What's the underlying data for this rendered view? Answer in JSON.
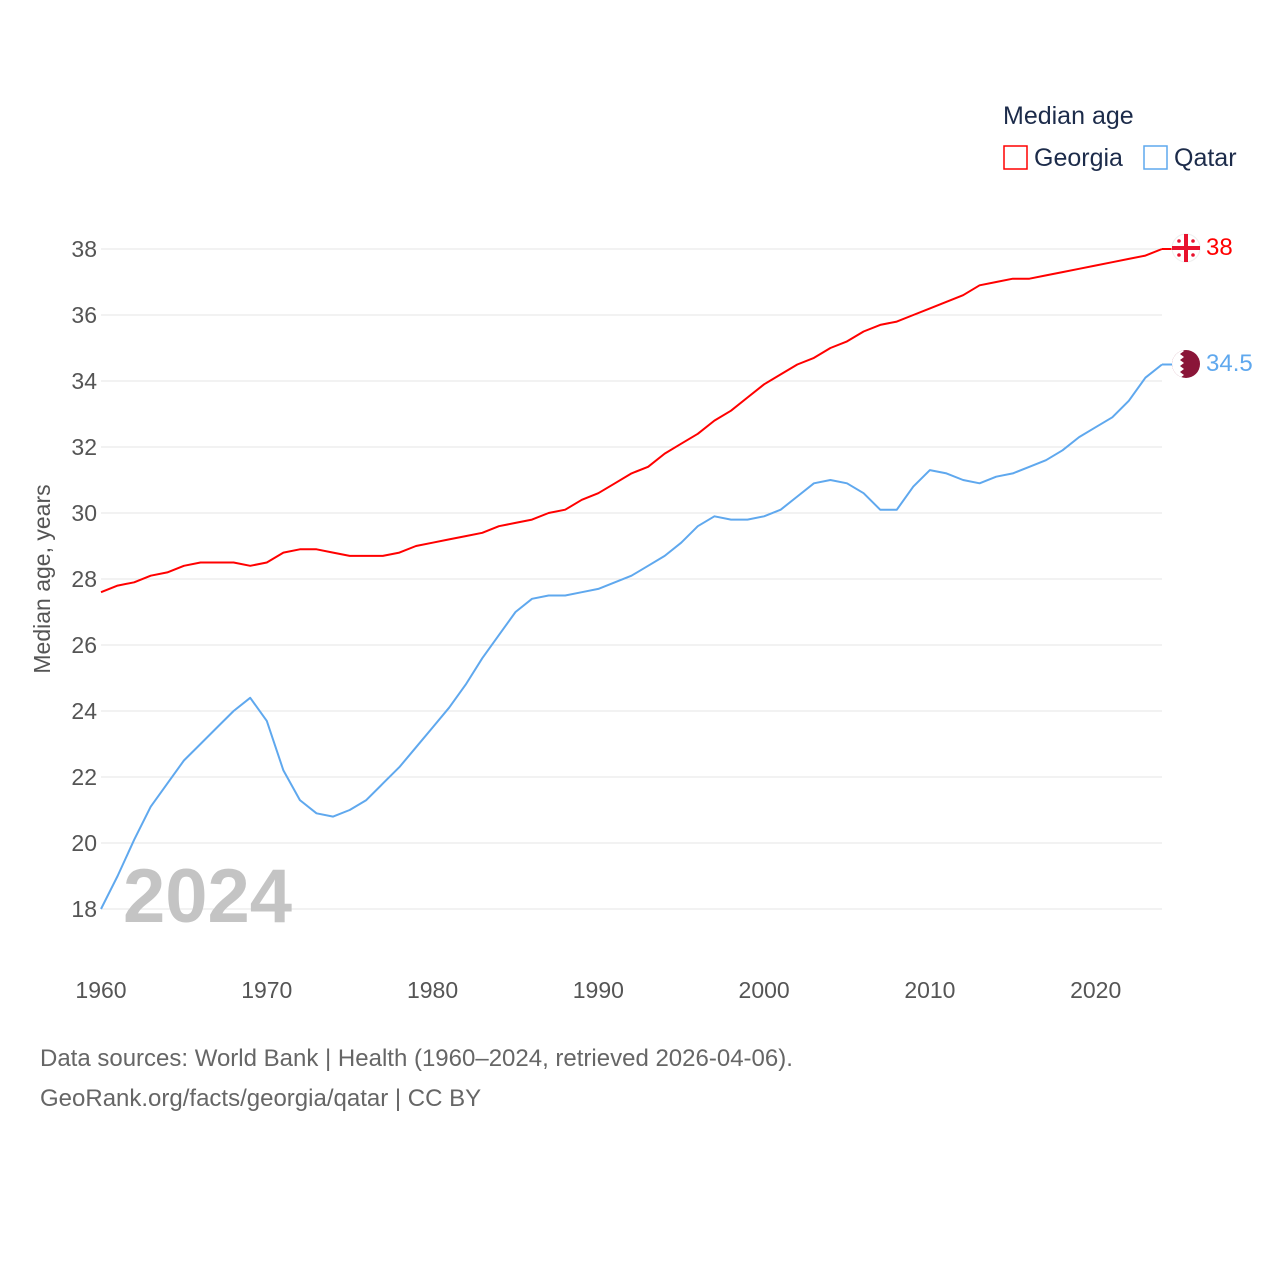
{
  "chart_data": {
    "type": "line",
    "title": "",
    "legend_title": "Median age",
    "legend_position": "top-right",
    "xlabel": "",
    "ylabel": "Median age, years",
    "xlim": [
      1960,
      2024
    ],
    "ylim": [
      18,
      38
    ],
    "y_ticks": [
      18,
      20,
      22,
      24,
      26,
      28,
      30,
      32,
      34,
      36,
      38
    ],
    "x_ticks": [
      1960,
      1970,
      1980,
      1990,
      2000,
      2010,
      2020
    ],
    "grid": true,
    "year_watermark": "2024",
    "x": [
      1960,
      1961,
      1962,
      1963,
      1964,
      1965,
      1966,
      1967,
      1968,
      1969,
      1970,
      1971,
      1972,
      1973,
      1974,
      1975,
      1976,
      1977,
      1978,
      1979,
      1980,
      1981,
      1982,
      1983,
      1984,
      1985,
      1986,
      1987,
      1988,
      1989,
      1990,
      1991,
      1992,
      1993,
      1994,
      1995,
      1996,
      1997,
      1998,
      1999,
      2000,
      2001,
      2002,
      2003,
      2004,
      2005,
      2006,
      2007,
      2008,
      2009,
      2010,
      2011,
      2012,
      2013,
      2014,
      2015,
      2016,
      2017,
      2018,
      2019,
      2020,
      2021,
      2022,
      2023,
      2024
    ],
    "series": [
      {
        "name": "Georgia",
        "color": "#ff0000",
        "end_label": "38",
        "values": [
          27.6,
          27.8,
          27.9,
          28.1,
          28.2,
          28.4,
          28.5,
          28.5,
          28.5,
          28.4,
          28.5,
          28.8,
          28.9,
          28.9,
          28.8,
          28.7,
          28.7,
          28.7,
          28.8,
          29.0,
          29.1,
          29.2,
          29.3,
          29.4,
          29.6,
          29.7,
          29.8,
          30.0,
          30.1,
          30.4,
          30.6,
          30.9,
          31.2,
          31.4,
          31.8,
          32.1,
          32.4,
          32.8,
          33.1,
          33.5,
          33.9,
          34.2,
          34.5,
          34.7,
          35.0,
          35.2,
          35.5,
          35.7,
          35.8,
          36.0,
          36.2,
          36.4,
          36.6,
          36.9,
          37.0,
          37.1,
          37.1,
          37.2,
          37.3,
          37.4,
          37.5,
          37.6,
          37.7,
          37.8,
          38.0
        ]
      },
      {
        "name": "Qatar",
        "color": "#5fa8ee",
        "end_label": "34.5",
        "values": [
          18.0,
          19.0,
          20.1,
          21.1,
          21.8,
          22.5,
          23.0,
          23.5,
          24.0,
          24.4,
          23.7,
          22.2,
          21.3,
          20.9,
          20.8,
          21.0,
          21.3,
          21.8,
          22.3,
          22.9,
          23.5,
          24.1,
          24.8,
          25.6,
          26.3,
          27.0,
          27.4,
          27.5,
          27.5,
          27.6,
          27.7,
          27.9,
          28.1,
          28.4,
          28.7,
          29.1,
          29.6,
          29.9,
          29.8,
          29.8,
          29.9,
          30.1,
          30.5,
          30.9,
          31.0,
          30.9,
          30.6,
          30.1,
          30.1,
          30.8,
          31.3,
          31.2,
          31.0,
          30.9,
          31.1,
          31.2,
          31.4,
          31.6,
          31.9,
          32.3,
          32.6,
          32.9,
          33.4,
          34.1,
          34.5
        ]
      }
    ]
  },
  "footer": {
    "line1": "Data sources: World Bank | Health (1960–2024, retrieved 2026-04-06).",
    "line2": "GeoRank.org/facts/georgia/qatar | CC BY"
  }
}
